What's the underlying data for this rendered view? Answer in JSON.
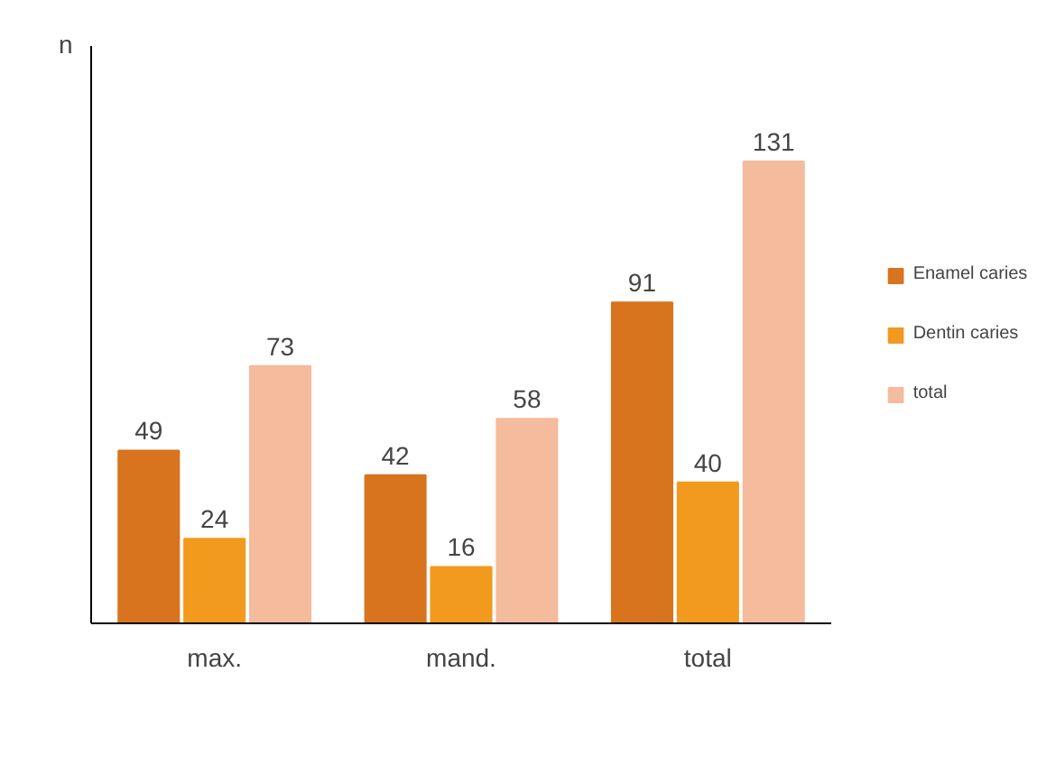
{
  "chart_data": {
    "type": "bar",
    "ylabel": "n",
    "categories": [
      "max.",
      "mand.",
      "total"
    ],
    "series": [
      {
        "name": "Enamel caries",
        "color": "#d8731e",
        "values": [
          49,
          42,
          91
        ]
      },
      {
        "name": "Dentin caries",
        "color": "#f29a1e",
        "values": [
          24,
          16,
          40
        ]
      },
      {
        "name": "total",
        "color": "#f4bb9c",
        "values": [
          73,
          58,
          131
        ]
      }
    ],
    "data_labels": true,
    "legend": "right",
    "grid": false
  }
}
